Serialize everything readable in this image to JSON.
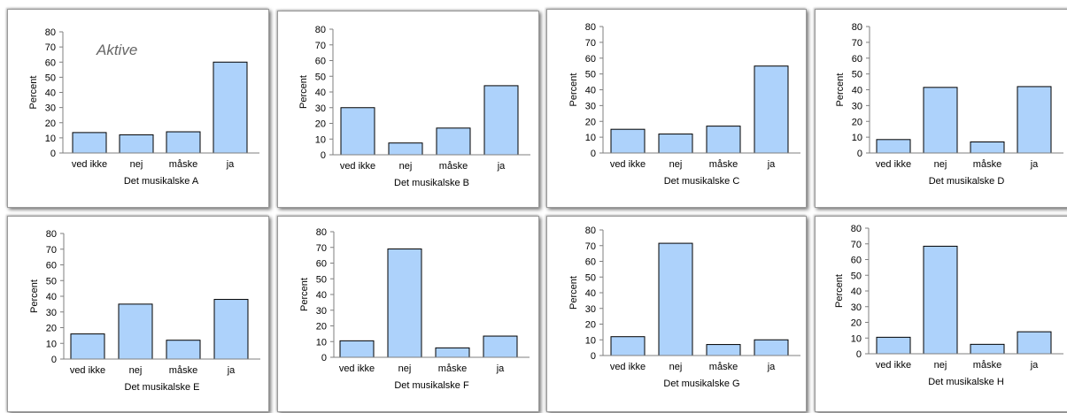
{
  "colors": {
    "bar_fill": "#add2fb",
    "bar_stroke": "#000000",
    "axis": "#7f7f7f"
  },
  "chart_data": [
    {
      "type": "bar",
      "categories": [
        "ved ikke",
        "nej",
        "måske",
        "ja"
      ],
      "values": [
        13.5,
        12,
        14,
        60
      ],
      "xlabel": "Det musikalske A",
      "ylabel": "Percent",
      "ylim": [
        0,
        80
      ],
      "yticks": [
        0,
        10,
        20,
        30,
        40,
        50,
        60,
        70,
        80
      ],
      "annotation": "Aktive",
      "grid": false
    },
    {
      "type": "bar",
      "categories": [
        "ved ikke",
        "nej",
        "måske",
        "ja"
      ],
      "values": [
        30,
        7.5,
        17,
        44
      ],
      "xlabel": "Det musikalske B",
      "ylabel": "Percent",
      "ylim": [
        0,
        80
      ],
      "yticks": [
        0,
        10,
        20,
        30,
        40,
        50,
        60,
        70,
        80
      ],
      "grid": false
    },
    {
      "type": "bar",
      "categories": [
        "ved ikke",
        "nej",
        "måske",
        "ja"
      ],
      "values": [
        15,
        12,
        17,
        55
      ],
      "xlabel": "Det musikalske C",
      "ylabel": "Percent",
      "ylim": [
        0,
        80
      ],
      "yticks": [
        0,
        10,
        20,
        30,
        40,
        50,
        60,
        70,
        80
      ],
      "grid": false
    },
    {
      "type": "bar",
      "categories": [
        "ved ikke",
        "nej",
        "måske",
        "ja"
      ],
      "values": [
        8.5,
        41.5,
        7,
        42
      ],
      "xlabel": "Det musikalske D",
      "ylabel": "Percent",
      "ylim": [
        0,
        80
      ],
      "yticks": [
        0,
        10,
        20,
        30,
        40,
        50,
        60,
        70,
        80
      ],
      "grid": false
    },
    {
      "type": "bar",
      "categories": [
        "ved ikke",
        "nej",
        "måske",
        "ja"
      ],
      "values": [
        16,
        35,
        12,
        38
      ],
      "xlabel": "Det musikalske E",
      "ylabel": "Percent",
      "ylim": [
        0,
        80
      ],
      "yticks": [
        0,
        10,
        20,
        30,
        40,
        50,
        60,
        70,
        80
      ],
      "grid": false
    },
    {
      "type": "bar",
      "categories": [
        "ved ikke",
        "nej",
        "måske",
        "ja"
      ],
      "values": [
        10.5,
        69,
        6,
        13.5
      ],
      "xlabel": "Det musikalske F",
      "ylabel": "Percent",
      "ylim": [
        0,
        80
      ],
      "yticks": [
        0,
        10,
        20,
        30,
        40,
        50,
        60,
        70,
        80
      ],
      "grid": false
    },
    {
      "type": "bar",
      "categories": [
        "ved ikke",
        "nej",
        "måske",
        "ja"
      ],
      "values": [
        12,
        71.5,
        7,
        10
      ],
      "xlabel": "Det musikalske G",
      "ylabel": "Percent",
      "ylim": [
        0,
        80
      ],
      "yticks": [
        0,
        10,
        20,
        30,
        40,
        50,
        60,
        70,
        80
      ],
      "grid": false
    },
    {
      "type": "bar",
      "categories": [
        "ved ikke",
        "nej",
        "måske",
        "ja"
      ],
      "values": [
        10.5,
        68.5,
        6,
        14
      ],
      "xlabel": "Det musikalske H",
      "ylabel": "Percent",
      "ylim": [
        0,
        80
      ],
      "yticks": [
        0,
        10,
        20,
        30,
        40,
        50,
        60,
        70,
        80
      ],
      "grid": false
    }
  ]
}
